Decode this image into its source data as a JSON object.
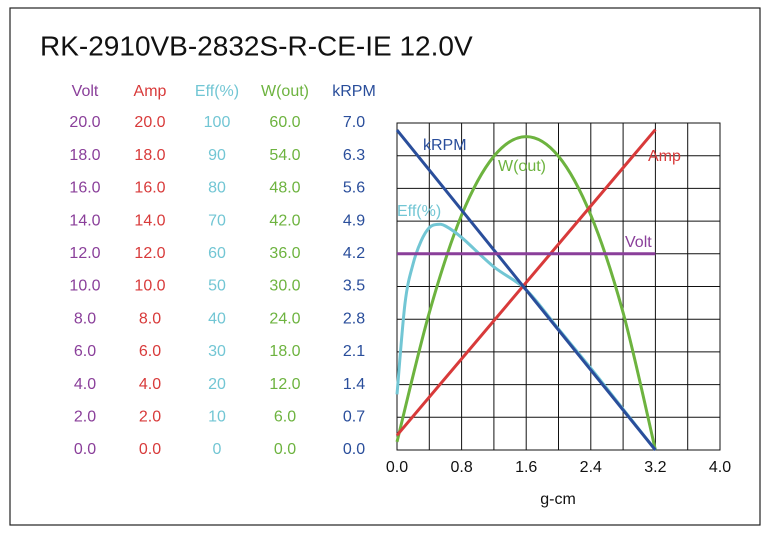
{
  "chart_data": {
    "type": "line",
    "title": "RK-2910VB-2832S-R-CE-IE   12.0V",
    "xlabel": "g-cm",
    "xlim": [
      0,
      4
    ],
    "xticks": [
      {
        "value": 0,
        "label": "0.0"
      },
      {
        "value": 0.8,
        "label": "0.8"
      },
      {
        "value": 1.6,
        "label": "1.6"
      },
      {
        "value": 2.4,
        "label": "2.4"
      },
      {
        "value": 3.2,
        "label": "3.2"
      },
      {
        "value": 4,
        "label": "4.0"
      }
    ],
    "grid": true,
    "series": [
      {
        "name": "Volt",
        "color": "#8a3f9a",
        "ylim": [
          0,
          20
        ],
        "yticks": [
          {
            "value": 20,
            "label": "20.0"
          },
          {
            "value": 18,
            "label": "18.0"
          },
          {
            "value": 16,
            "label": "16.0"
          },
          {
            "value": 14,
            "label": "14.0"
          },
          {
            "value": 12,
            "label": "12.0"
          },
          {
            "value": 10,
            "label": "10.0"
          },
          {
            "value": 8,
            "label": "8.0"
          },
          {
            "value": 6,
            "label": "6.0"
          },
          {
            "value": 4,
            "label": "4.0"
          },
          {
            "value": 2,
            "label": "2.0"
          },
          {
            "value": 0,
            "label": "0.0"
          }
        ],
        "x": [
          0,
          3.2
        ],
        "values": [
          12.0,
          12.0
        ]
      },
      {
        "name": "Amp",
        "color": "#d83a3a",
        "ylim": [
          0,
          20
        ],
        "yticks": [
          {
            "value": 20,
            "label": "20.0"
          },
          {
            "value": 18,
            "label": "18.0"
          },
          {
            "value": 16,
            "label": "16.0"
          },
          {
            "value": 14,
            "label": "14.0"
          },
          {
            "value": 12,
            "label": "12.0"
          },
          {
            "value": 10,
            "label": "10.0"
          },
          {
            "value": 8,
            "label": "8.0"
          },
          {
            "value": 6,
            "label": "6.0"
          },
          {
            "value": 4,
            "label": "4.0"
          },
          {
            "value": 2,
            "label": "2.0"
          },
          {
            "value": 0,
            "label": "0.0"
          }
        ],
        "x": [
          0,
          3.2
        ],
        "values": [
          0.9,
          19.6
        ]
      },
      {
        "name": "Eff(%)",
        "color": "#72c6d4",
        "ylim": [
          0,
          100
        ],
        "yticks": [
          100,
          90,
          80,
          70,
          60,
          50,
          40,
          30,
          20,
          10,
          0
        ],
        "x": [
          0,
          0.1,
          0.2,
          0.3,
          0.4,
          0.5,
          0.6,
          0.8,
          1.2,
          1.6,
          2.0,
          2.4,
          2.8,
          3.2
        ],
        "values": [
          17,
          45,
          57,
          64,
          68,
          69,
          68.5,
          65,
          56,
          49,
          37,
          25,
          12.5,
          0
        ]
      },
      {
        "name": "W(out)",
        "color": "#6db33f",
        "ylim": [
          0,
          60
        ],
        "yticks": [
          {
            "value": 60,
            "label": "60.0"
          },
          {
            "value": 54,
            "label": "54.0"
          },
          {
            "value": 48,
            "label": "48.0"
          },
          {
            "value": 42,
            "label": "42.0"
          },
          {
            "value": 36,
            "label": "36.0"
          },
          {
            "value": 30,
            "label": "30.0"
          },
          {
            "value": 24,
            "label": "24.0"
          },
          {
            "value": 18,
            "label": "18.0"
          },
          {
            "value": 12,
            "label": "12.0"
          },
          {
            "value": 6,
            "label": "6.0"
          },
          {
            "value": 0,
            "label": "0.0"
          }
        ],
        "x": [
          0,
          0.4,
          0.8,
          1.2,
          1.6,
          2.0,
          2.4,
          2.8,
          3.2
        ],
        "values": [
          1.5,
          25.2,
          43.1,
          53.9,
          57.5,
          53.9,
          43.1,
          25.2,
          0
        ]
      },
      {
        "name": "kRPM",
        "color": "#2a4e9b",
        "ylim": [
          0,
          7
        ],
        "yticks": [
          {
            "value": 7,
            "label": "7.0"
          },
          {
            "value": 6.3,
            "label": "6.3"
          },
          {
            "value": 5.6,
            "label": "5.6"
          },
          {
            "value": 4.9,
            "label": "4.9"
          },
          {
            "value": 4.2,
            "label": "4.2"
          },
          {
            "value": 3.5,
            "label": "3.5"
          },
          {
            "value": 2.8,
            "label": "2.8"
          },
          {
            "value": 2.1,
            "label": "2.1"
          },
          {
            "value": 1.4,
            "label": "1.4"
          },
          {
            "value": 0.7,
            "label": "0.7"
          },
          {
            "value": 0,
            "label": "0.0"
          }
        ],
        "x": [
          0,
          3.2
        ],
        "values": [
          6.85,
          0
        ]
      }
    ]
  }
}
